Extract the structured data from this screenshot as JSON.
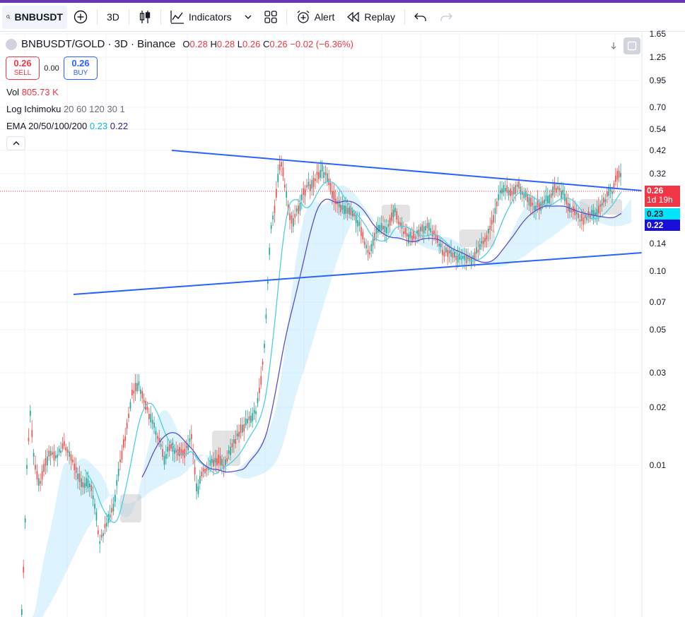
{
  "toolbar": {
    "symbol": "BNBUSDT",
    "interval": "3D",
    "indicators_label": "Indicators",
    "alert_label": "Alert",
    "replay_label": "Replay"
  },
  "legend": {
    "title": "BNBUSDT/GOLD · 3D · Binance",
    "ohlc": {
      "O": "0.28",
      "H": "0.28",
      "L": "0.26",
      "C": "0.26",
      "change": "−0.02 (−6.36%)"
    },
    "sell_price": "0.26",
    "sell_label": "SELL",
    "spread": "0.00",
    "buy_price": "0.26",
    "buy_label": "BUY",
    "vol_label": "Vol",
    "vol_value": "805.73 K",
    "ichimoku_label": "Log Ichimoku",
    "ichimoku_params": "20 60 120 30 1",
    "ema_label": "EMA 20/50/100/200",
    "ema_val1": "0.23",
    "ema_val2": "0.22"
  },
  "price_axis": [
    "1.65",
    "1.25",
    "0.95",
    "0.70",
    "0.54",
    "0.42",
    "0.32",
    "0.14",
    "0.10",
    "0.07",
    "0.05",
    "0.03",
    "0.02",
    "0.01"
  ],
  "price_labels": {
    "last": "0.26",
    "countdown": "1d 19h",
    "ema_fast": "0.23",
    "ema_slow": "0.22"
  },
  "colors": {
    "up": "#26a69a",
    "down": "#ef5350",
    "trendline": "#2962ff",
    "ema_fast": "#4dd0e1",
    "ema_slow": "#5c4ec9",
    "cloud": "#b3e5fc",
    "cloud_bear": "#c8c8c8"
  }
}
